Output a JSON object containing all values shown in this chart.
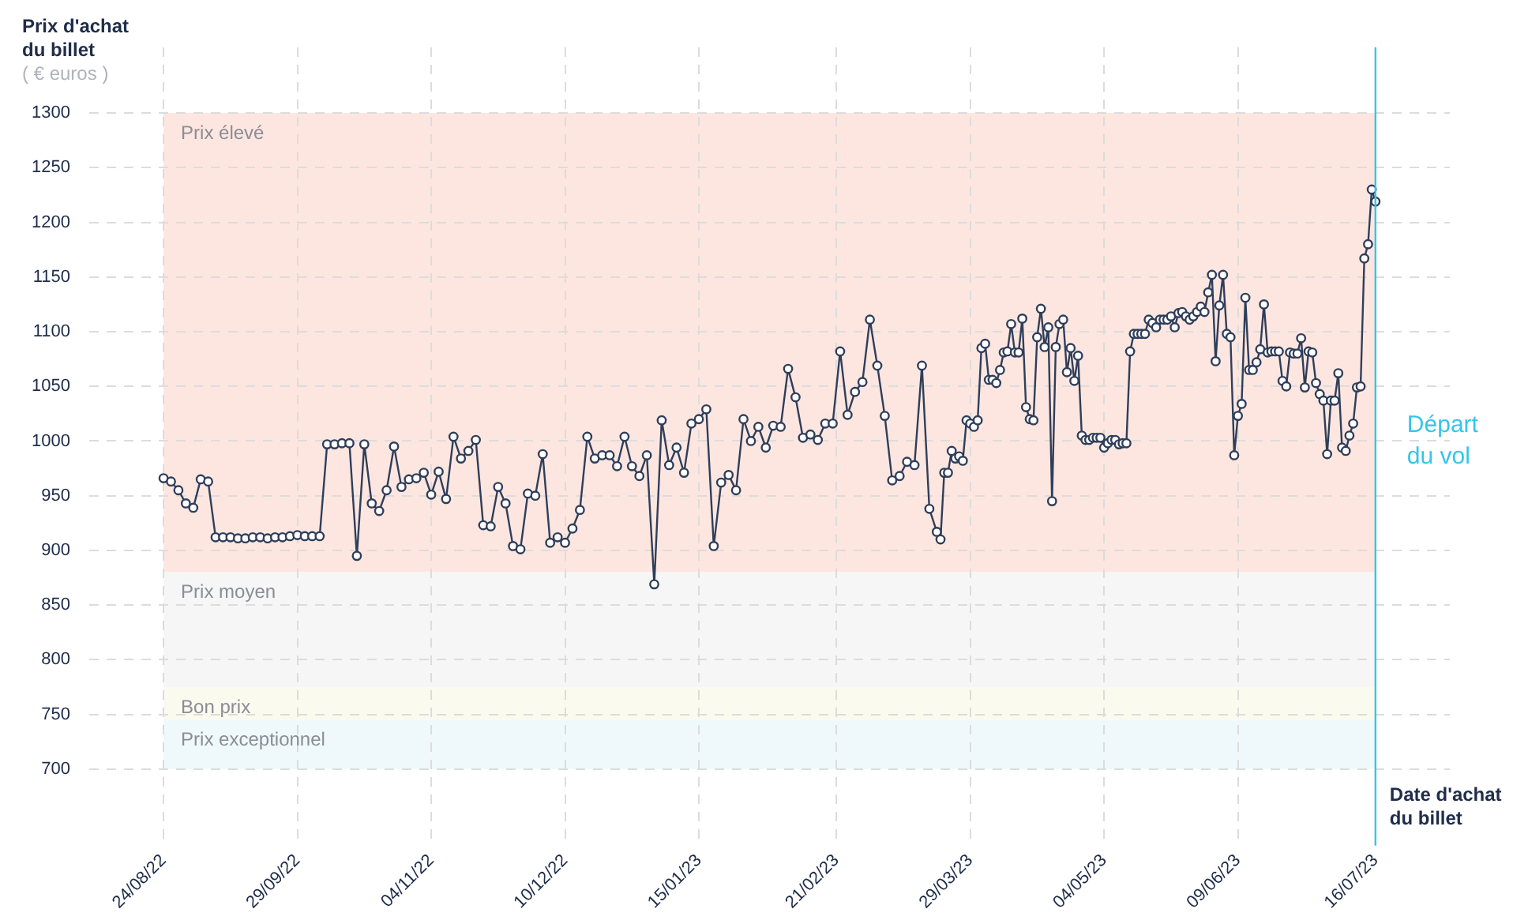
{
  "chart_data": {
    "type": "line",
    "ylabel": "Prix d'achat du billet",
    "xlabel": "Date d'achat du billet",
    "annotations": [
      "( € euros )"
    ],
    "x": [
      "2022-08-24",
      "2022-08-26",
      "2022-08-28",
      "2022-08-30",
      "2022-09-01",
      "2022-09-03",
      "2022-09-05",
      "2022-09-07",
      "2022-09-09",
      "2022-09-11",
      "2022-09-13",
      "2022-09-15",
      "2022-09-17",
      "2022-09-19",
      "2022-09-21",
      "2022-09-23",
      "2022-09-25",
      "2022-09-27",
      "2022-09-29",
      "2022-10-01",
      "2022-10-03",
      "2022-10-05",
      "2022-10-07",
      "2022-10-09",
      "2022-10-11",
      "2022-10-13",
      "2022-10-15",
      "2022-10-17",
      "2022-10-19",
      "2022-10-21",
      "2022-10-23",
      "2022-10-25",
      "2022-10-27",
      "2022-10-29",
      "2022-10-31",
      "2022-11-02",
      "2022-11-04",
      "2022-11-06",
      "2022-11-08",
      "2022-11-10",
      "2022-11-12",
      "2022-11-14",
      "2022-11-16",
      "2022-11-18",
      "2022-11-20",
      "2022-11-22",
      "2022-11-24",
      "2022-11-26",
      "2022-11-28",
      "2022-11-30",
      "2022-12-02",
      "2022-12-04",
      "2022-12-06",
      "2022-12-08",
      "2022-12-10",
      "2022-12-12",
      "2022-12-14",
      "2022-12-16",
      "2022-12-18",
      "2022-12-20",
      "2022-12-22",
      "2022-12-24",
      "2022-12-26",
      "2022-12-28",
      "2022-12-30",
      "2023-01-01",
      "2023-01-03",
      "2023-01-05",
      "2023-01-07",
      "2023-01-09",
      "2023-01-11",
      "2023-01-13",
      "2023-01-15",
      "2023-01-17",
      "2023-01-19",
      "2023-01-21",
      "2023-01-23",
      "2023-01-25",
      "2023-01-27",
      "2023-01-29",
      "2023-01-31",
      "2023-02-02",
      "2023-02-04",
      "2023-02-06",
      "2023-02-08",
      "2023-02-10",
      "2023-02-12",
      "2023-02-14",
      "2023-02-16",
      "2023-02-18",
      "2023-02-20",
      "2023-02-22",
      "2023-02-24",
      "2023-02-26",
      "2023-02-28",
      "2023-03-02",
      "2023-03-04",
      "2023-03-06",
      "2023-03-08",
      "2023-03-10",
      "2023-03-12",
      "2023-03-14",
      "2023-03-16",
      "2023-03-18",
      "2023-03-20",
      "2023-03-21",
      "2023-03-22",
      "2023-03-23",
      "2023-03-24",
      "2023-03-25",
      "2023-03-26",
      "2023-03-27",
      "2023-03-28",
      "2023-03-29",
      "2023-03-30",
      "2023-03-31",
      "2023-04-01",
      "2023-04-02",
      "2023-04-03",
      "2023-04-04",
      "2023-04-05",
      "2023-04-06",
      "2023-04-07",
      "2023-04-08",
      "2023-04-09",
      "2023-04-10",
      "2023-04-11",
      "2023-04-12",
      "2023-04-13",
      "2023-04-14",
      "2023-04-15",
      "2023-04-16",
      "2023-04-17",
      "2023-04-18",
      "2023-04-19",
      "2023-04-20",
      "2023-04-21",
      "2023-04-22",
      "2023-04-23",
      "2023-04-24",
      "2023-04-25",
      "2023-04-26",
      "2023-04-27",
      "2023-04-28",
      "2023-04-29",
      "2023-04-30",
      "2023-05-01",
      "2023-05-02",
      "2023-05-03",
      "2023-05-04",
      "2023-05-05",
      "2023-05-06",
      "2023-05-07",
      "2023-05-08",
      "2023-05-09",
      "2023-05-10",
      "2023-05-11",
      "2023-05-12",
      "2023-05-13",
      "2023-05-14",
      "2023-05-15",
      "2023-05-16",
      "2023-05-17",
      "2023-05-18",
      "2023-05-19",
      "2023-05-20",
      "2023-05-21",
      "2023-05-22",
      "2023-05-23",
      "2023-05-24",
      "2023-05-25",
      "2023-05-26",
      "2023-05-27",
      "2023-05-28",
      "2023-05-29",
      "2023-05-30",
      "2023-05-31",
      "2023-06-01",
      "2023-06-02",
      "2023-06-03",
      "2023-06-04",
      "2023-06-05",
      "2023-06-06",
      "2023-06-07",
      "2023-06-08",
      "2023-06-09",
      "2023-06-10",
      "2023-06-11",
      "2023-06-12",
      "2023-06-13",
      "2023-06-14",
      "2023-06-15",
      "2023-06-16",
      "2023-06-17",
      "2023-06-18",
      "2023-06-19",
      "2023-06-20",
      "2023-06-21",
      "2023-06-22",
      "2023-06-23",
      "2023-06-24",
      "2023-06-25",
      "2023-06-26",
      "2023-06-27",
      "2023-06-28",
      "2023-06-29",
      "2023-06-30",
      "2023-07-01",
      "2023-07-02",
      "2023-07-03",
      "2023-07-04",
      "2023-07-05",
      "2023-07-06",
      "2023-07-07",
      "2023-07-08",
      "2023-07-09",
      "2023-07-10",
      "2023-07-11",
      "2023-07-12",
      "2023-07-13",
      "2023-07-14",
      "2023-07-15",
      "2023-07-16"
    ],
    "series": [
      {
        "color": "#2f3e5a",
        "values": [
          966,
          963,
          955,
          943,
          939,
          965,
          963,
          912,
          912,
          912,
          911,
          911,
          912,
          912,
          911,
          912,
          912,
          913,
          914,
          913,
          913,
          913,
          997,
          997,
          998,
          998,
          895,
          997,
          943,
          936,
          955,
          995,
          958,
          965,
          966,
          971,
          951,
          972,
          947,
          1004,
          984,
          991,
          1001,
          923,
          922,
          958,
          943,
          904,
          901,
          952,
          950,
          988,
          907,
          912,
          907,
          920,
          937,
          1004,
          984,
          987,
          987,
          977,
          1004,
          977,
          968,
          987,
          869,
          1019,
          978,
          994,
          971,
          1016,
          1020,
          1029,
          904,
          962,
          969,
          955,
          1020,
          1000,
          1013,
          994,
          1014,
          1013,
          1066,
          1040,
          1003,
          1006,
          1001,
          1016,
          1016,
          1082,
          1024,
          1045,
          1054,
          1111,
          1069,
          1023,
          964,
          968,
          981,
          978,
          1069,
          938,
          917,
          910,
          971,
          971,
          991,
          984,
          986,
          982,
          1019,
          1016,
          1013,
          1019,
          1085,
          1089,
          1056,
          1056,
          1053,
          1065,
          1081,
          1082,
          1107,
          1081,
          1081,
          1112,
          1031,
          1020,
          1019,
          1095,
          1121,
          1086,
          1104,
          945,
          1086,
          1107,
          1111,
          1063,
          1085,
          1055,
          1078,
          1005,
          1001,
          1001,
          1003,
          1003,
          1003,
          994,
          998,
          1001,
          1001,
          997,
          998,
          998,
          1082,
          1098,
          1098,
          1098,
          1098,
          1111,
          1108,
          1104,
          1111,
          1111,
          1111,
          1114,
          1104,
          1117,
          1118,
          1114,
          1111,
          1114,
          1118,
          1123,
          1118,
          1136,
          1152,
          1073,
          1124,
          1152,
          1098,
          1095,
          987,
          1023,
          1034,
          1131,
          1065,
          1065,
          1072,
          1084,
          1125,
          1081,
          1082,
          1082,
          1082,
          1055,
          1050,
          1081,
          1080,
          1080,
          1094,
          1049,
          1082,
          1081,
          1053,
          1043,
          1037,
          988,
          1037,
          1037,
          1062,
          994,
          991,
          1005,
          1016,
          1049,
          1050,
          1167,
          1180,
          1230,
          1219
        ]
      }
    ],
    "marker": "circle",
    "line_style": "solid",
    "grid": true,
    "legend": false,
    "xlim": [
      "2022-08-04",
      "2023-08-05"
    ],
    "xticks": [
      {
        "value": "2022-08-24",
        "label": "24/08/22"
      },
      {
        "value": "2022-09-29",
        "label": "29/09/22"
      },
      {
        "value": "2022-11-04",
        "label": "04/11/22"
      },
      {
        "value": "2022-12-10",
        "label": "10/12/22"
      },
      {
        "value": "2023-01-15",
        "label": "15/01/23"
      },
      {
        "value": "2023-02-21",
        "label": "21/02/23"
      },
      {
        "value": "2023-03-29",
        "label": "29/03/23"
      },
      {
        "value": "2023-05-04",
        "label": "04/05/23"
      },
      {
        "value": "2023-06-09",
        "label": "09/06/23"
      },
      {
        "value": "2023-07-16",
        "label": "16/07/23"
      }
    ],
    "ylim": [
      630,
      1360
    ],
    "yticks": [
      700,
      750,
      800,
      850,
      900,
      950,
      1000,
      1050,
      1100,
      1150,
      1200,
      1250,
      1300
    ],
    "bands": [
      {
        "axis": "y",
        "from": 880,
        "to": 1300,
        "label": "Prix élevé",
        "color": "#fde6e0"
      },
      {
        "axis": "y",
        "from": 775,
        "to": 880,
        "label": "Prix moyen",
        "color": "#f6f6f6"
      },
      {
        "axis": "y",
        "from": 745,
        "to": 775,
        "label": "Bon prix",
        "color": "#fafaef"
      },
      {
        "axis": "y",
        "from": 700,
        "to": 745,
        "label": "Prix exceptionnel",
        "color": "#eff9fb"
      }
    ],
    "ref_lines": [
      {
        "axis": "x",
        "value": "2023-07-16",
        "label": "Départ du vol",
        "color": "#35c5ea"
      }
    ]
  }
}
